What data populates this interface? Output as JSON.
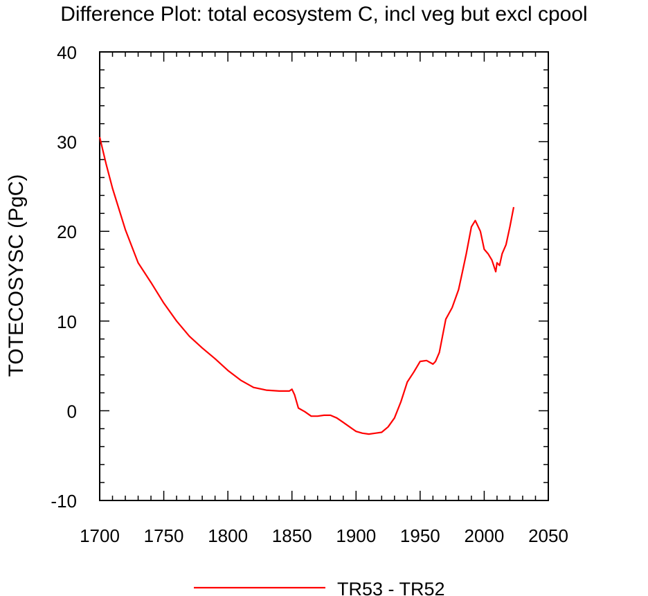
{
  "chart_data": {
    "type": "line",
    "title": "Difference Plot: total ecosystem C, incl veg but excl cpool",
    "xlabel": "",
    "ylabel": "TOTECOSYSC  (PgC)",
    "xlim": [
      1700,
      2050
    ],
    "ylim": [
      -10,
      40
    ],
    "x_ticks": [
      1700,
      1750,
      1800,
      1850,
      1900,
      1950,
      2000,
      2050
    ],
    "x_tick_labels": [
      "1700",
      "1750",
      "1800",
      "1850",
      "1900",
      "1950",
      "2000",
      "2050"
    ],
    "y_ticks": [
      -10,
      0,
      10,
      20,
      30,
      40
    ],
    "y_tick_labels": [
      "-10",
      "0",
      "10",
      "20",
      "30",
      "40"
    ],
    "legend_position": "bottom-center",
    "series": [
      {
        "name": "TR53 - TR52",
        "color": "#ff0000",
        "x": [
          1700,
          1705,
          1710,
          1720,
          1730,
          1740,
          1750,
          1760,
          1770,
          1780,
          1790,
          1800,
          1810,
          1820,
          1830,
          1840,
          1848,
          1850,
          1852,
          1855,
          1860,
          1865,
          1870,
          1875,
          1880,
          1885,
          1890,
          1895,
          1900,
          1905,
          1910,
          1915,
          1920,
          1925,
          1930,
          1935,
          1940,
          1945,
          1950,
          1955,
          1960,
          1962,
          1965,
          1970,
          1975,
          1980,
          1983,
          1986,
          1990,
          1993,
          1995,
          1997,
          2000,
          2003,
          2006,
          2009,
          2010,
          2012,
          2014,
          2017,
          2020,
          2023
        ],
        "values": [
          30.5,
          27.5,
          24.8,
          20.2,
          16.5,
          14.3,
          12.0,
          10.0,
          8.3,
          7.0,
          5.8,
          4.5,
          3.4,
          2.6,
          2.3,
          2.2,
          2.2,
          2.4,
          1.8,
          0.3,
          -0.1,
          -0.6,
          -0.6,
          -0.5,
          -0.5,
          -0.8,
          -1.3,
          -1.8,
          -2.3,
          -2.5,
          -2.6,
          -2.5,
          -2.4,
          -1.8,
          -0.8,
          1.0,
          3.2,
          4.3,
          5.5,
          5.6,
          5.2,
          5.5,
          6.5,
          10.2,
          11.5,
          13.5,
          15.5,
          17.5,
          20.5,
          21.2,
          20.6,
          20.0,
          18.0,
          17.5,
          16.8,
          15.5,
          16.5,
          16.2,
          17.5,
          18.5,
          20.5,
          22.7
        ]
      }
    ]
  }
}
